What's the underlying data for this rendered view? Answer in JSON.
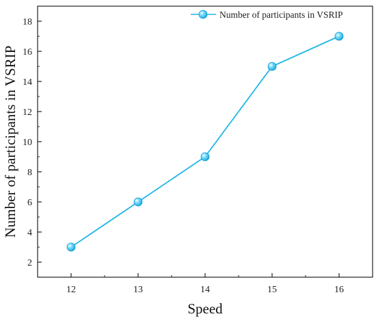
{
  "chart_data": {
    "type": "line",
    "title": "",
    "xlabel": "Speed",
    "ylabel": "Number of participants in VSRIP",
    "x": [
      12,
      13,
      14,
      15,
      16
    ],
    "series": [
      {
        "name": "Number of participants in VSRIP",
        "values": [
          3,
          6,
          9,
          15,
          17
        ]
      }
    ],
    "xticks": [
      "12",
      "13",
      "14",
      "15",
      "16"
    ],
    "yticks": [
      "2",
      "4",
      "6",
      "8",
      "10",
      "12",
      "14",
      "16",
      "18"
    ],
    "xlim": [
      11.5,
      16.5
    ],
    "ylim": [
      1,
      19
    ],
    "grid": false,
    "legend_position": "top-right",
    "colors": {
      "line": "#1fb6e6",
      "marker": "#28bdf0",
      "axis": "#222222"
    }
  }
}
